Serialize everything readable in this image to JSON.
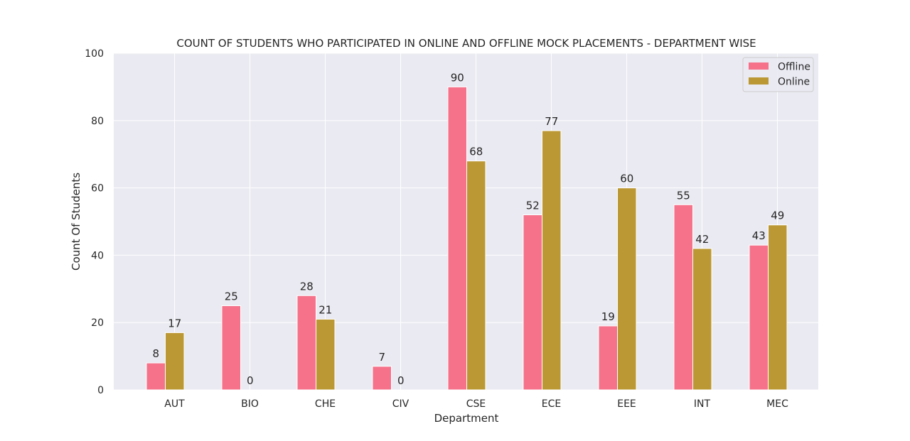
{
  "chart_data": {
    "type": "bar",
    "title": "COUNT OF STUDENTS WHO PARTICIPATED IN ONLINE AND OFFLINE MOCK PLACEMENTS - DEPARTMENT WISE",
    "xlabel": "Department",
    "ylabel": "Count Of Students",
    "categories": [
      "AUT",
      "BIO",
      "CHE",
      "CIV",
      "CSE",
      "ECE",
      "EEE",
      "INT",
      "MEC"
    ],
    "series": [
      {
        "name": "Offline",
        "color": "#f5728a",
        "values": [
          8,
          25,
          28,
          7,
          90,
          52,
          19,
          55,
          43
        ]
      },
      {
        "name": "Online",
        "color": "#bb9833",
        "values": [
          17,
          0,
          21,
          0,
          68,
          77,
          60,
          42,
          49
        ]
      }
    ],
    "ylim": [
      0,
      100
    ],
    "yticks": [
      0,
      20,
      40,
      60,
      80,
      100
    ],
    "grid": true,
    "legend_position": "top-right",
    "background_color": "#eaeaf2",
    "grid_color": "#ffffff"
  }
}
